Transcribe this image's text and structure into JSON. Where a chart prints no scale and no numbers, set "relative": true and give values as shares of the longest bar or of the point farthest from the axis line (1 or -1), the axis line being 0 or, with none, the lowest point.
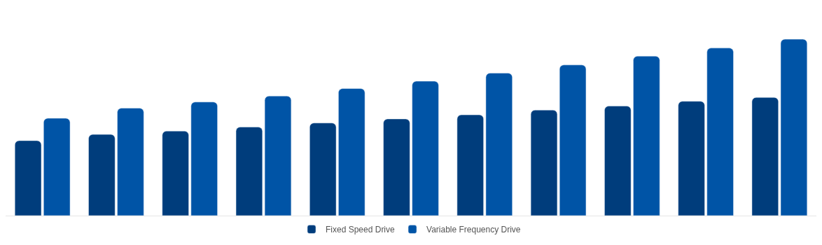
{
  "chart_data": {
    "type": "bar",
    "relative": true,
    "legend": "bottom",
    "categories": [
      null,
      null,
      null,
      null,
      null,
      null,
      null,
      null,
      null,
      null,
      null
    ],
    "series": [
      {
        "name": "Fixed Speed Drive",
        "color": "#003d7c",
        "values": [
          0.425,
          0.46,
          0.479,
          0.502,
          0.525,
          0.548,
          0.571,
          0.598,
          0.621,
          0.648,
          0.67
        ]
      },
      {
        "name": "Variable Frequency Drive",
        "color": "#0054a6",
        "values": [
          0.552,
          0.609,
          0.644,
          0.678,
          0.72,
          0.762,
          0.808,
          0.854,
          0.904,
          0.95,
          1
        ]
      }
    ]
  }
}
